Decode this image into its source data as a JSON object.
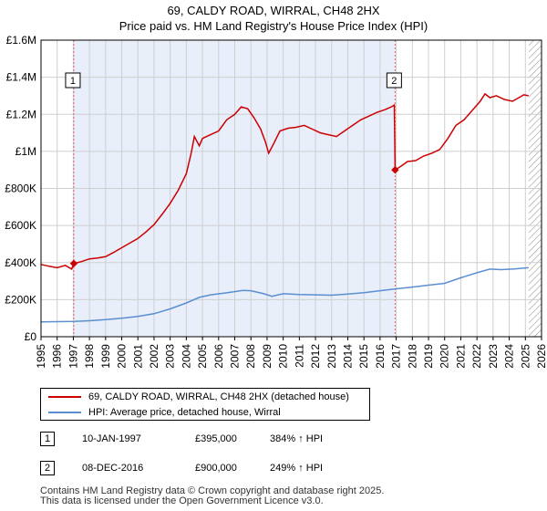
{
  "title_line1": "69, CALDY ROAD, WIRRAL, CH48 2HX",
  "title_line2": "Price paid vs. HM Land Registry's House Price Index (HPI)",
  "colors": {
    "price": "#cc0000",
    "hpi": "#5b8fd0",
    "shade": "#e8eefa",
    "grid": "#cfcfcf",
    "vline": "#e06666",
    "hatch": "#999999"
  },
  "legend": {
    "price_label": "69, CALDY ROAD, WIRRAL, CH48 2HX (detached house)",
    "hpi_label": "HPI: Average price, detached house, Wirral"
  },
  "transactions": [
    {
      "num": "1",
      "date": "10-JAN-1997",
      "price": "£395,000",
      "hpi_change": "384% ↑ HPI"
    },
    {
      "num": "2",
      "date": "08-DEC-2016",
      "price": "£900,000",
      "hpi_change": "249% ↑ HPI"
    }
  ],
  "footer": {
    "line1": "Contains HM Land Registry data © Crown copyright and database right 2025.",
    "line2": "This data is licensed under the Open Government Licence v3.0."
  },
  "chart_data": {
    "type": "line",
    "xlim": [
      1995,
      2026
    ],
    "ylim": [
      0,
      1600000
    ],
    "x_ticks": [
      "1995",
      "1996",
      "1997",
      "1998",
      "1999",
      "2000",
      "2001",
      "2002",
      "2003",
      "2004",
      "2005",
      "2006",
      "2007",
      "2008",
      "2009",
      "2010",
      "2011",
      "2012",
      "2013",
      "2014",
      "2015",
      "2016",
      "2017",
      "2018",
      "2019",
      "2020",
      "2021",
      "2022",
      "2023",
      "2024",
      "2025",
      "2026"
    ],
    "y_ticks": [
      {
        "value": 0,
        "label": "£0"
      },
      {
        "value": 200000,
        "label": "£200K"
      },
      {
        "value": 400000,
        "label": "£400K"
      },
      {
        "value": 600000,
        "label": "£600K"
      },
      {
        "value": 800000,
        "label": "£800K"
      },
      {
        "value": 1000000,
        "label": "£1M"
      },
      {
        "value": 1200000,
        "label": "£1.2M"
      },
      {
        "value": 1400000,
        "label": "£1.4M"
      },
      {
        "value": 1600000,
        "label": "£1.6M"
      }
    ],
    "shaded_range": [
      1997.03,
      2016.93
    ],
    "future_from": 2025.2,
    "sales": [
      {
        "label": "1",
        "x": 1997.03,
        "y": 395000
      },
      {
        "label": "2",
        "x": 2016.93,
        "y": 900000
      }
    ],
    "series": [
      {
        "name": "69, CALDY ROAD, WIRRAL, CH48 2HX (detached house)",
        "points": [
          [
            1995.0,
            390000
          ],
          [
            1995.5,
            380000
          ],
          [
            1996.0,
            372000
          ],
          [
            1996.5,
            385000
          ],
          [
            1996.9,
            365000
          ],
          [
            1997.03,
            395000
          ],
          [
            1997.5,
            405000
          ],
          [
            1998.0,
            420000
          ],
          [
            1998.5,
            425000
          ],
          [
            1999.0,
            432000
          ],
          [
            1999.5,
            455000
          ],
          [
            2000.0,
            480000
          ],
          [
            2000.5,
            505000
          ],
          [
            2001.0,
            530000
          ],
          [
            2001.5,
            565000
          ],
          [
            2002.0,
            605000
          ],
          [
            2002.5,
            660000
          ],
          [
            2003.0,
            720000
          ],
          [
            2003.5,
            790000
          ],
          [
            2004.0,
            880000
          ],
          [
            2004.3,
            990000
          ],
          [
            2004.5,
            1080000
          ],
          [
            2004.8,
            1030000
          ],
          [
            2005.0,
            1070000
          ],
          [
            2005.5,
            1090000
          ],
          [
            2006.0,
            1110000
          ],
          [
            2006.5,
            1170000
          ],
          [
            2007.0,
            1200000
          ],
          [
            2007.4,
            1240000
          ],
          [
            2007.8,
            1230000
          ],
          [
            2008.2,
            1180000
          ],
          [
            2008.6,
            1120000
          ],
          [
            2008.9,
            1050000
          ],
          [
            2009.1,
            990000
          ],
          [
            2009.4,
            1040000
          ],
          [
            2009.8,
            1110000
          ],
          [
            2010.3,
            1125000
          ],
          [
            2010.8,
            1130000
          ],
          [
            2011.3,
            1140000
          ],
          [
            2011.8,
            1120000
          ],
          [
            2012.3,
            1100000
          ],
          [
            2012.8,
            1090000
          ],
          [
            2013.3,
            1080000
          ],
          [
            2013.8,
            1110000
          ],
          [
            2014.3,
            1140000
          ],
          [
            2014.8,
            1170000
          ],
          [
            2015.3,
            1190000
          ],
          [
            2015.8,
            1210000
          ],
          [
            2016.3,
            1225000
          ],
          [
            2016.7,
            1240000
          ],
          [
            2016.88,
            1250000
          ],
          [
            2016.93,
            900000
          ],
          [
            2017.3,
            920000
          ],
          [
            2017.7,
            945000
          ],
          [
            2018.2,
            950000
          ],
          [
            2018.7,
            975000
          ],
          [
            2019.2,
            990000
          ],
          [
            2019.7,
            1010000
          ],
          [
            2020.2,
            1070000
          ],
          [
            2020.7,
            1140000
          ],
          [
            2021.2,
            1170000
          ],
          [
            2021.7,
            1220000
          ],
          [
            2022.2,
            1270000
          ],
          [
            2022.5,
            1310000
          ],
          [
            2022.8,
            1290000
          ],
          [
            2023.2,
            1300000
          ],
          [
            2023.7,
            1280000
          ],
          [
            2024.2,
            1270000
          ],
          [
            2024.6,
            1290000
          ],
          [
            2024.9,
            1305000
          ],
          [
            2025.2,
            1300000
          ]
        ]
      },
      {
        "name": "HPI: Average price, detached house, Wirral",
        "points": [
          [
            1995.0,
            80000
          ],
          [
            1996.0,
            81000
          ],
          [
            1997.03,
            82000
          ],
          [
            1998.0,
            86000
          ],
          [
            1999.0,
            92000
          ],
          [
            2000.0,
            100000
          ],
          [
            2001.0,
            110000
          ],
          [
            2002.0,
            124000
          ],
          [
            2003.0,
            150000
          ],
          [
            2004.0,
            182000
          ],
          [
            2004.8,
            212000
          ],
          [
            2005.5,
            226000
          ],
          [
            2006.5,
            237000
          ],
          [
            2007.5,
            250000
          ],
          [
            2008.0,
            248000
          ],
          [
            2008.8,
            232000
          ],
          [
            2009.3,
            218000
          ],
          [
            2010.0,
            232000
          ],
          [
            2011.0,
            228000
          ],
          [
            2012.0,
            226000
          ],
          [
            2013.0,
            224000
          ],
          [
            2014.0,
            230000
          ],
          [
            2015.0,
            238000
          ],
          [
            2016.0,
            248000
          ],
          [
            2016.93,
            258000
          ],
          [
            2018.0,
            268000
          ],
          [
            2019.0,
            278000
          ],
          [
            2020.0,
            288000
          ],
          [
            2021.0,
            318000
          ],
          [
            2022.0,
            345000
          ],
          [
            2022.8,
            365000
          ],
          [
            2023.5,
            362000
          ],
          [
            2024.3,
            366000
          ],
          [
            2025.2,
            372000
          ]
        ]
      }
    ]
  }
}
